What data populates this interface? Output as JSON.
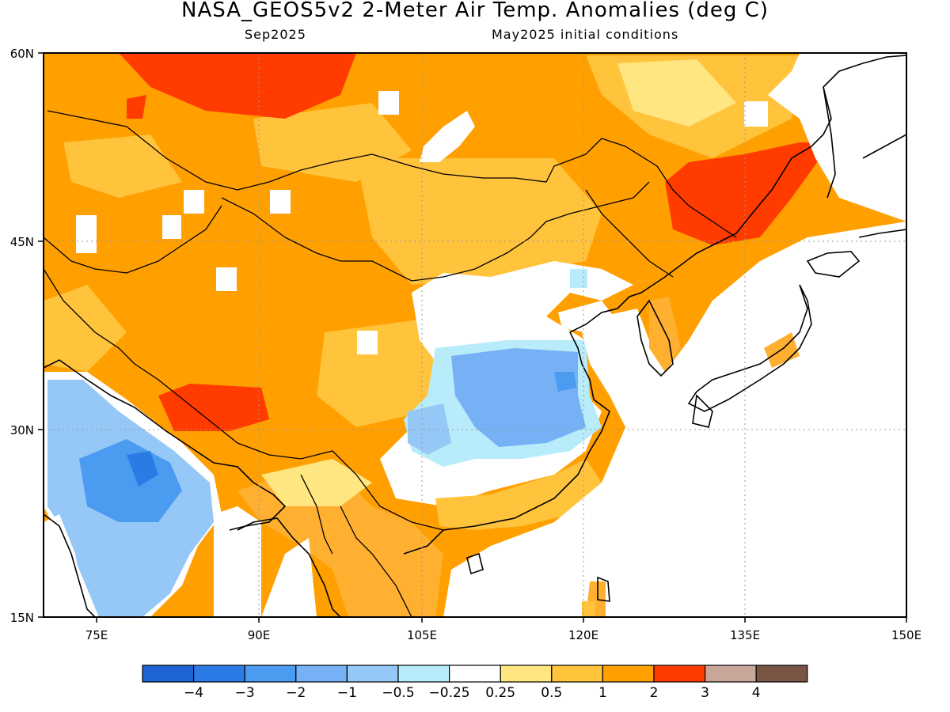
{
  "header": {
    "title": "NASA_GEOS5v2 2-Meter Air Temp. Anomalies (deg C)",
    "subtitle_left": "Sep2025",
    "subtitle_right": "May2025 initial conditions"
  },
  "map": {
    "lon_range": [
      70,
      150
    ],
    "lat_range": [
      15,
      60
    ],
    "lon_ticks": [
      "75E",
      "90E",
      "105E",
      "120E",
      "135E",
      "150E"
    ],
    "lat_ticks": [
      "15N",
      "30N",
      "45N",
      "60N"
    ],
    "land_mask_color": "#ffffff",
    "coastline_color": "#000000",
    "regions": [
      {
        "name": "northern-land-warm",
        "level": "1 to 2",
        "color": "#ff9f00"
      },
      {
        "name": "siberia-hot",
        "level": "2 to 3",
        "color": "#ff3b00"
      },
      {
        "name": "manchuria-hot",
        "level": "2 to 3",
        "color": "#ff3b00"
      },
      {
        "name": "tibet-hot",
        "level": "2 to 3",
        "color": "#ff3b00"
      },
      {
        "name": "gobi-mild",
        "level": "0.5 to 1",
        "color": "#ffc33c"
      },
      {
        "name": "north-china-neutral",
        "level": "-0.25 to 0.25",
        "color": "#ffffff"
      },
      {
        "name": "india-cool",
        "level": "-1 to -0.5",
        "color": "#8ebff5"
      },
      {
        "name": "india-cooler",
        "level": "-2 to -1",
        "color": "#4b9bf0"
      },
      {
        "name": "east-china-cool",
        "level": "-1 to -0.5",
        "color": "#8ebff5"
      },
      {
        "name": "southeast-asia-warm",
        "level": "0.5 to 2",
        "color": "#ffb030"
      }
    ]
  },
  "colorbar": {
    "colors": [
      "#1e64d6",
      "#2b7be6",
      "#4b9bf0",
      "#75b1f4",
      "#96c8f7",
      "#b8ecfa",
      "#ffffff",
      "#ffe680",
      "#ffc33c",
      "#ff9f00",
      "#ff3b00",
      "#c9a69a",
      "#7a5545"
    ],
    "labels": [
      "-4",
      "-3",
      "-2",
      "-1",
      "-0.5",
      "-0.25",
      "0.25",
      "0.5",
      "1",
      "2",
      "3",
      "4"
    ]
  }
}
